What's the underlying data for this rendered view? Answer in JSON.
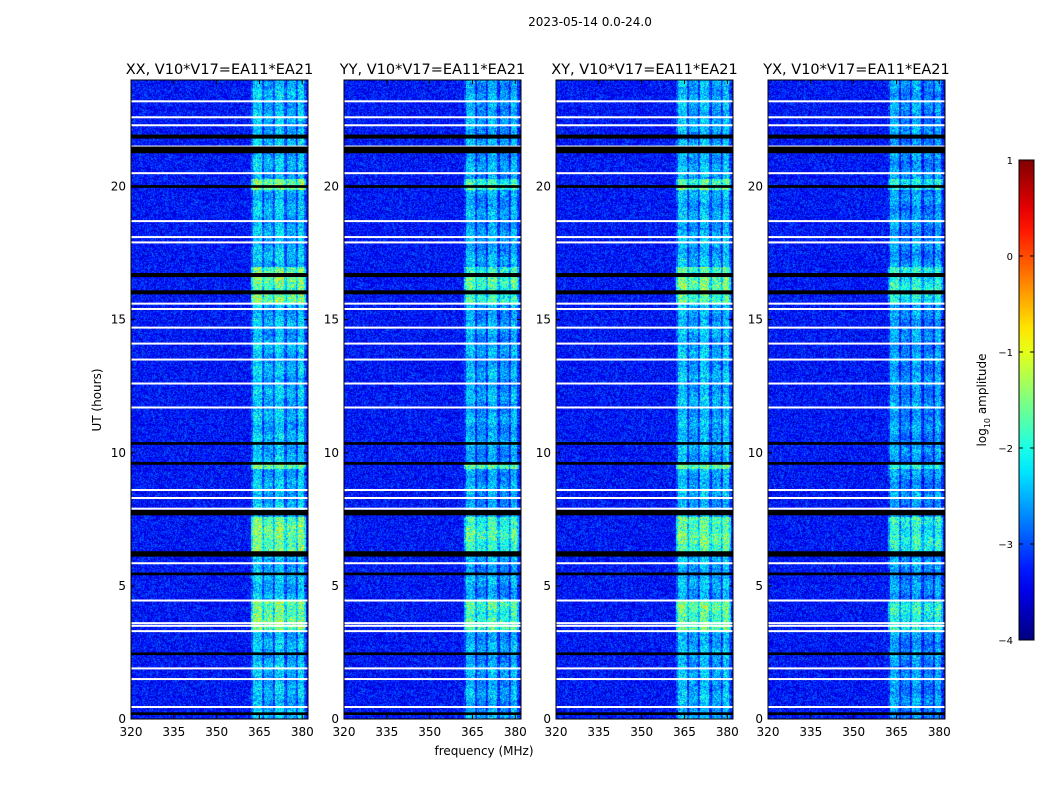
{
  "suptitle": "2023-05-14 0.0-24.0",
  "chart_data": {
    "type": "heatmap",
    "panels": [
      {
        "title": "XX, V10*V17=EA11*EA21",
        "pol": "XX",
        "band_strength": 1.0
      },
      {
        "title": "YY, V10*V17=EA11*EA21",
        "pol": "YY",
        "band_strength": 0.85
      },
      {
        "title": "XY, V10*V17=EA11*EA21",
        "pol": "XY",
        "band_strength": 0.95
      },
      {
        "title": "YX, V10*V17=EA11*EA21",
        "pol": "YX",
        "band_strength": 0.75
      }
    ],
    "xlabel": "frequency (MHz)",
    "ylabel": "UT (hours)",
    "xlim": [
      320,
      382
    ],
    "ylim": [
      0,
      24
    ],
    "xticks": [
      320,
      335,
      350,
      365,
      380
    ],
    "yticks": [
      0,
      5,
      10,
      15,
      20
    ],
    "colorbar": {
      "label": "log₁₀ amplitude",
      "label_main": "log",
      "label_sub": "10",
      "label_rest": " amplitude",
      "range": [
        -4,
        1
      ],
      "ticks": [
        1,
        0,
        -1,
        -2,
        -3,
        -4
      ],
      "tick_labels": [
        "1",
        "0",
        "−1",
        "−2",
        "−3",
        "−4"
      ],
      "colormap": "jet"
    },
    "background_log_amplitude": -3.3,
    "rfi_band_mhz": [
      362,
      381
    ],
    "rfi_channel_edges_mhz": [
      362,
      366,
      370,
      374,
      378,
      381
    ],
    "flagged_hours_white": [
      0.45,
      1.5,
      1.9,
      3.3,
      3.5,
      3.6,
      4.45,
      5.85,
      7.7,
      7.9,
      8.3,
      8.6,
      11.7,
      12.6,
      13.5,
      14.1,
      14.7,
      15.4,
      15.6,
      17.9,
      18.1,
      18.7,
      20.5,
      21.5,
      22.3,
      22.6,
      23.2
    ],
    "gap_hours_black": [
      [
        0.15,
        0.25
      ],
      [
        2.4,
        2.5
      ],
      [
        5.4,
        5.5
      ],
      [
        6.1,
        6.3
      ],
      [
        7.65,
        7.85
      ],
      [
        9.55,
        9.65
      ],
      [
        10.3,
        10.4
      ],
      [
        15.95,
        16.1
      ],
      [
        16.6,
        16.75
      ],
      [
        19.95,
        20.05
      ],
      [
        21.25,
        21.5
      ],
      [
        21.8,
        21.95
      ]
    ],
    "strong_rfi_hours": [
      [
        3.3,
        4.5
      ],
      [
        6.2,
        7.6
      ],
      [
        9.4,
        9.6
      ],
      [
        15.6,
        17.0
      ],
      [
        19.9,
        20.3
      ]
    ]
  }
}
